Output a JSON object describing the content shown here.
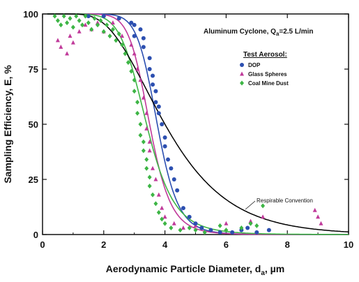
{
  "chart_data": {
    "type": "scatter",
    "title": "",
    "xlabel": "Aerodynamic Particle Diameter, d",
    "xlabel_sub": "a",
    "xlabel_unit": ", µm",
    "ylabel": "Sampling Efficiency, E, %",
    "xlim": [
      0,
      10
    ],
    "ylim": [
      0,
      100
    ],
    "x_ticks": [
      0,
      2,
      4,
      6,
      8,
      10
    ],
    "y_ticks": [
      0,
      25,
      50,
      75,
      100
    ],
    "grid": false,
    "legend_position": "right",
    "annotations": {
      "cyclone_main": "Aluminum Cyclone, Q",
      "cyclone_sub": "a",
      "cyclone_tail": "=2.5 L/min",
      "legend_title": "Test Aerosol:",
      "curve_label": "Respirable Convention"
    },
    "colors": {
      "dop": "#2c4fb0",
      "glass": "#c03a9a",
      "coal": "#3db545",
      "convention": "#000000"
    },
    "curves": [
      {
        "name": "DOP",
        "d50": 3.75,
        "slope": 11,
        "color_key": "dop"
      },
      {
        "name": "Glass Spheres",
        "d50": 3.5,
        "slope": 10,
        "color_key": "glass"
      },
      {
        "name": "Coal Mine Dust",
        "d50": 3.4,
        "slope": 7.5,
        "color_key": "coal"
      },
      {
        "name": "Respirable Convention",
        "d50": 4.0,
        "gsd": 1.5,
        "color_key": "convention"
      }
    ],
    "series": [
      {
        "name": "DOP",
        "marker": "circle",
        "color_key": "dop",
        "points": [
          [
            1.5,
            99
          ],
          [
            2.0,
            99
          ],
          [
            2.5,
            98
          ],
          [
            2.9,
            96
          ],
          [
            3.0,
            95
          ],
          [
            3.0,
            90
          ],
          [
            3.2,
            93
          ],
          [
            3.3,
            89
          ],
          [
            3.3,
            85
          ],
          [
            3.5,
            80
          ],
          [
            3.5,
            75
          ],
          [
            3.6,
            72
          ],
          [
            3.6,
            68
          ],
          [
            3.7,
            65
          ],
          [
            3.7,
            60
          ],
          [
            3.8,
            58
          ],
          [
            3.8,
            55
          ],
          [
            3.9,
            50
          ],
          [
            4.0,
            44
          ],
          [
            4.0,
            40
          ],
          [
            4.1,
            34
          ],
          [
            4.2,
            30
          ],
          [
            4.3,
            25
          ],
          [
            4.4,
            20
          ],
          [
            4.6,
            12
          ],
          [
            4.8,
            8
          ],
          [
            5.0,
            5
          ],
          [
            5.2,
            3
          ],
          [
            5.5,
            2
          ],
          [
            5.8,
            1
          ],
          [
            6.2,
            1
          ],
          [
            6.5,
            2
          ],
          [
            6.7,
            3
          ],
          [
            7.0,
            1
          ],
          [
            7.4,
            2
          ]
        ]
      },
      {
        "name": "Glass Spheres",
        "marker": "triangle",
        "color_key": "glass",
        "points": [
          [
            0.5,
            88
          ],
          [
            0.6,
            85
          ],
          [
            0.8,
            82
          ],
          [
            0.9,
            90
          ],
          [
            1.0,
            87
          ],
          [
            1.2,
            92
          ],
          [
            1.4,
            95
          ],
          [
            1.6,
            93
          ],
          [
            1.8,
            96
          ],
          [
            2.0,
            92
          ],
          [
            2.3,
            96
          ],
          [
            2.6,
            90
          ],
          [
            2.9,
            86
          ],
          [
            3.0,
            82
          ],
          [
            3.1,
            75
          ],
          [
            3.2,
            70
          ],
          [
            3.3,
            62
          ],
          [
            3.4,
            55
          ],
          [
            3.4,
            48
          ],
          [
            3.5,
            42
          ],
          [
            3.5,
            38
          ],
          [
            3.6,
            30
          ],
          [
            3.7,
            25
          ],
          [
            3.8,
            18
          ],
          [
            3.9,
            12
          ],
          [
            4.0,
            8
          ],
          [
            4.3,
            5
          ],
          [
            4.6,
            3
          ],
          [
            5.0,
            4
          ],
          [
            5.5,
            2
          ],
          [
            6.0,
            5
          ],
          [
            6.8,
            6
          ],
          [
            7.2,
            8
          ],
          [
            8.9,
            11
          ],
          [
            9.0,
            8
          ],
          [
            9.1,
            5
          ]
        ]
      },
      {
        "name": "Coal Mine Dust",
        "marker": "diamond",
        "color_key": "coal",
        "points": [
          [
            0.4,
            99
          ],
          [
            0.5,
            97
          ],
          [
            0.6,
            95
          ],
          [
            0.7,
            99
          ],
          [
            0.8,
            96
          ],
          [
            0.9,
            98
          ],
          [
            1.0,
            94
          ],
          [
            1.1,
            99
          ],
          [
            1.2,
            97
          ],
          [
            1.3,
            95
          ],
          [
            1.4,
            99
          ],
          [
            1.5,
            96
          ],
          [
            1.6,
            93
          ],
          [
            1.7,
            98
          ],
          [
            1.8,
            95
          ],
          [
            1.9,
            97
          ],
          [
            2.0,
            92
          ],
          [
            2.1,
            95
          ],
          [
            2.2,
            90
          ],
          [
            2.3,
            93
          ],
          [
            2.4,
            88
          ],
          [
            2.5,
            91
          ],
          [
            2.6,
            86
          ],
          [
            2.7,
            82
          ],
          [
            2.8,
            78
          ],
          [
            2.9,
            74
          ],
          [
            3.0,
            70
          ],
          [
            3.0,
            65
          ],
          [
            3.1,
            60
          ],
          [
            3.1,
            55
          ],
          [
            3.2,
            50
          ],
          [
            3.2,
            45
          ],
          [
            3.3,
            42
          ],
          [
            3.3,
            38
          ],
          [
            3.4,
            34
          ],
          [
            3.4,
            30
          ],
          [
            3.5,
            26
          ],
          [
            3.5,
            22
          ],
          [
            3.6,
            18
          ],
          [
            3.7,
            14
          ],
          [
            3.8,
            10
          ],
          [
            3.9,
            7
          ],
          [
            4.0,
            5
          ],
          [
            4.2,
            3
          ],
          [
            4.5,
            2
          ],
          [
            4.8,
            3
          ],
          [
            5.0,
            2
          ],
          [
            5.3,
            1
          ],
          [
            5.8,
            4
          ],
          [
            6.0,
            2
          ],
          [
            6.5,
            3
          ],
          [
            6.8,
            5
          ],
          [
            7.0,
            4
          ],
          [
            7.2,
            13
          ]
        ]
      }
    ]
  }
}
